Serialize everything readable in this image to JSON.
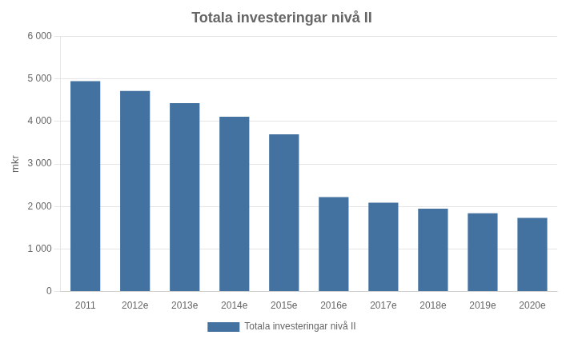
{
  "chart_data": {
    "type": "bar",
    "title": "Totala investeringar nivå II",
    "ylabel": "mkr",
    "categories": [
      "2011",
      "2012e",
      "2013e",
      "2014e",
      "2015e",
      "2016e",
      "2017e",
      "2018e",
      "2019e",
      "2020e"
    ],
    "series": [
      {
        "name": "Totala investeringar nivå II",
        "color": "#4472a0",
        "values": [
          4950,
          4720,
          4430,
          4110,
          3700,
          2220,
          2090,
          1950,
          1840,
          1730
        ]
      }
    ],
    "ylim": [
      0,
      6000
    ],
    "yticks": [
      0,
      {
        "value": 1000,
        "label": "1 000"
      },
      {
        "value": 2000,
        "label": "2 000"
      },
      {
        "value": 3000,
        "label": "3 000"
      },
      {
        "value": 4000,
        "label": "4 000"
      },
      {
        "value": 5000,
        "label": "5 000"
      },
      {
        "value": 6000,
        "label": "6 000"
      }
    ],
    "grid": true,
    "legend": "bottom"
  }
}
